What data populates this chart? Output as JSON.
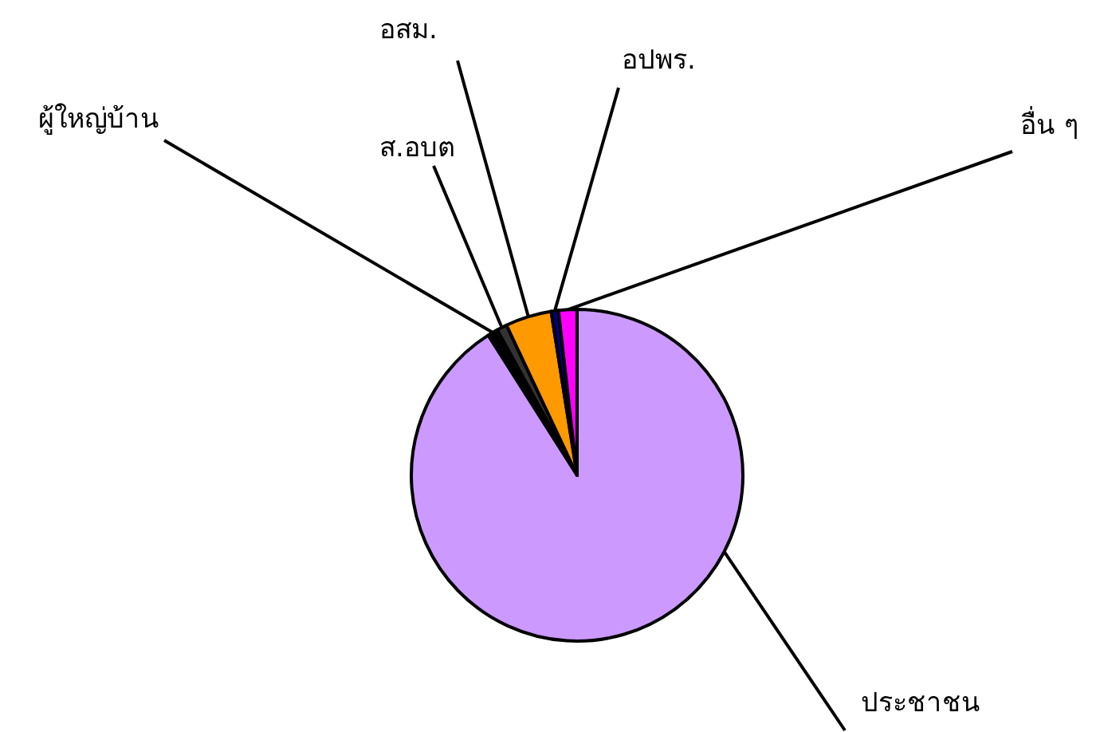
{
  "chart_data": {
    "type": "pie",
    "categories": [
      "ประชาชน",
      "ผู้ใหญ่บ้าน",
      "ส.อบต",
      "อสม.",
      "อปพร.",
      "อื่น ๆ"
    ],
    "values": [
      91,
      1,
      1,
      4.5,
      0.7,
      1.8
    ],
    "colors": [
      "#cc99ff",
      "#000000",
      "#333333",
      "#ff9900",
      "#000080",
      "#ff00ff"
    ]
  }
}
